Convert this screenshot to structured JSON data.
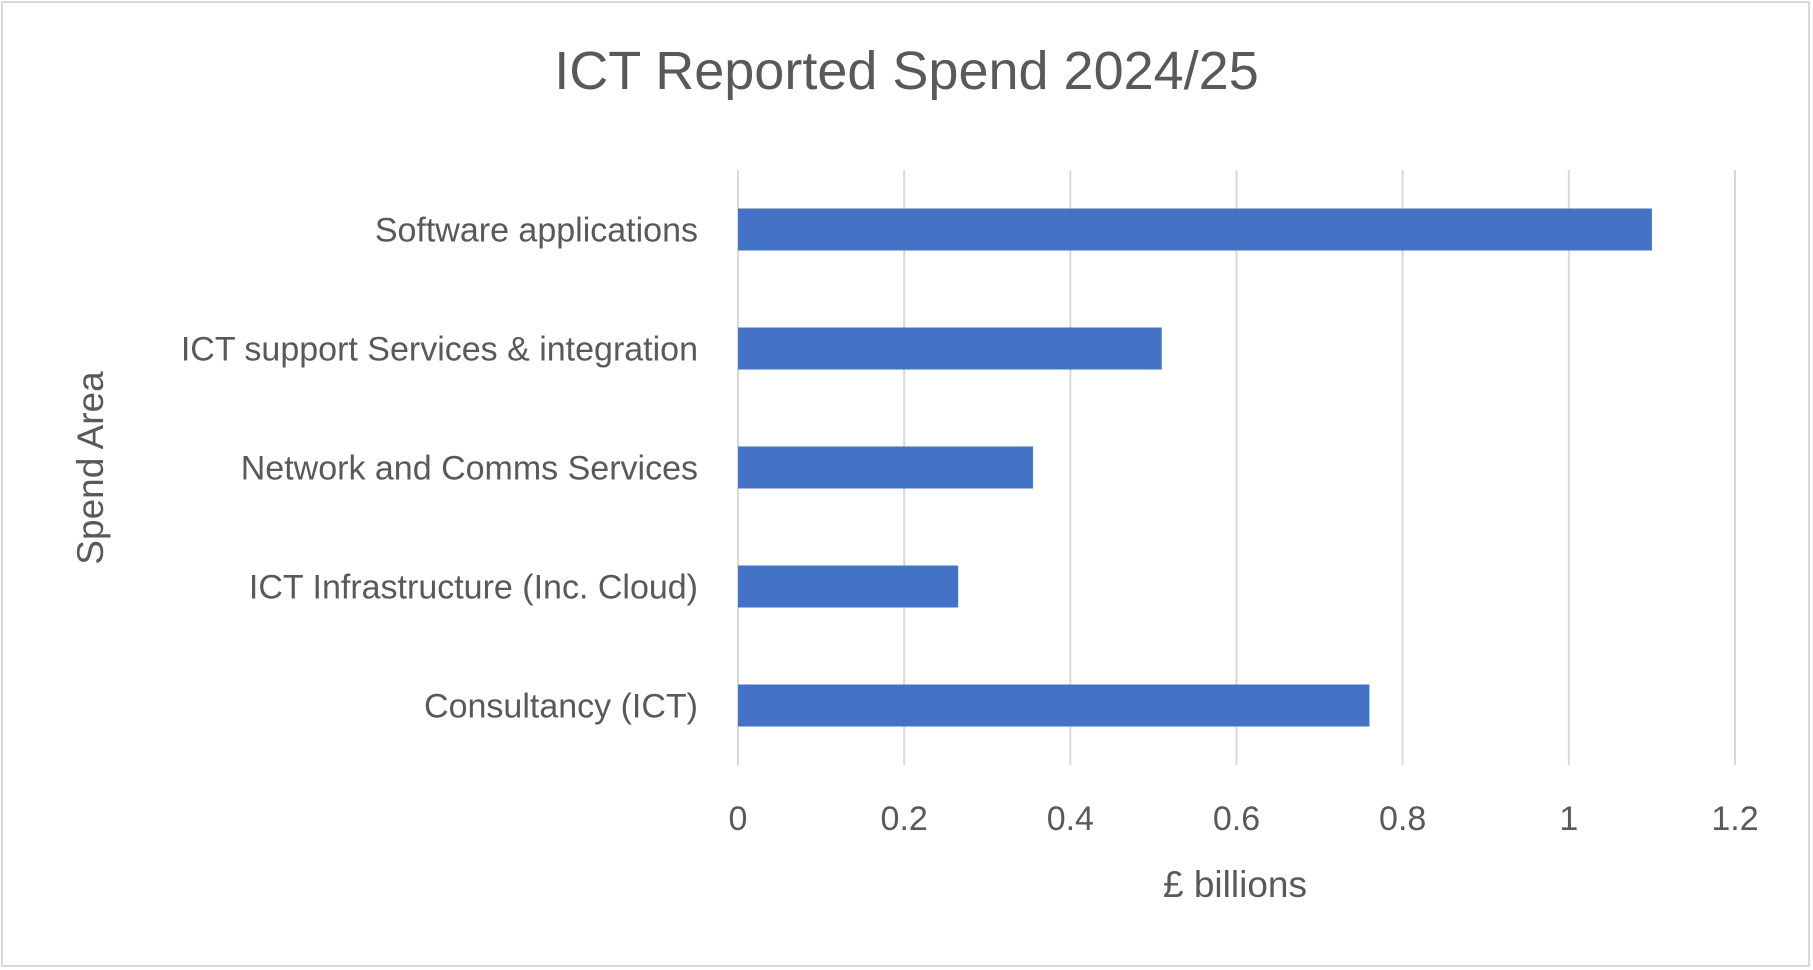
{
  "chart_data": {
    "type": "bar",
    "orientation": "horizontal",
    "title": "ICT Reported Spend 2024/25",
    "xlabel": "£ billions",
    "ylabel": "Spend Area",
    "categories": [
      "Software applications",
      "ICT support Services & integration",
      "Network and Comms Services",
      "ICT Infrastructure (Inc. Cloud)",
      "Consultancy (ICT)"
    ],
    "values": [
      1.1,
      0.51,
      0.355,
      0.265,
      0.76
    ],
    "xlim": [
      0,
      1.2
    ],
    "xticks": [
      0,
      0.2,
      0.4,
      0.6,
      0.8,
      1,
      1.2
    ],
    "xtick_labels": [
      "0",
      "0.2",
      "0.4",
      "0.6",
      "0.8",
      "1",
      "1.2"
    ],
    "grid": "vertical",
    "legend": "none",
    "bar_color": "#4472C4",
    "grid_color": "#d9d9d9"
  }
}
